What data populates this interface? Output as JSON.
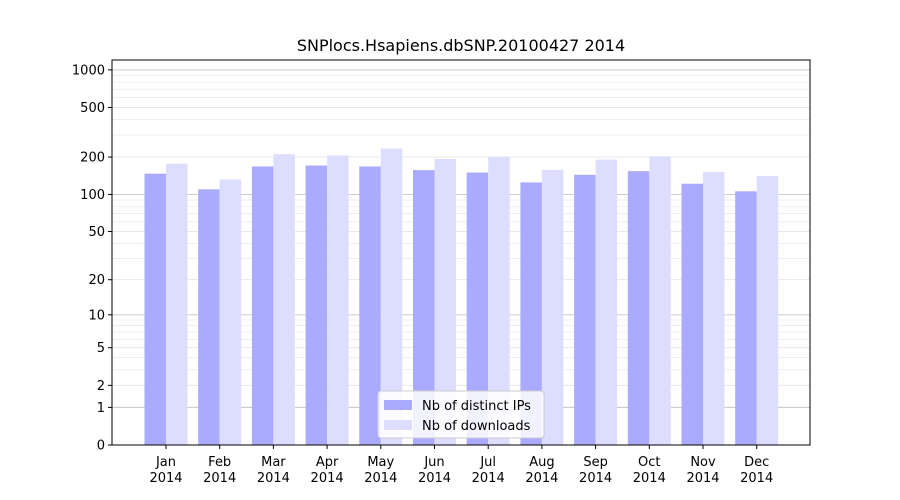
{
  "chart_data": {
    "type": "bar",
    "title": "SNPlocs.Hsapiens.dbSNP.20100427 2014",
    "xlabel": "",
    "ylabel": "",
    "y_scale": "log(1+y)",
    "ylim": [
      0,
      1200
    ],
    "y_ticks": [
      0,
      1,
      2,
      5,
      10,
      20,
      50,
      100,
      200,
      500,
      1000
    ],
    "y_tick_labels": [
      "0",
      "1",
      "2",
      "5",
      "10",
      "20",
      "50",
      "100",
      "200",
      "500",
      "1000"
    ],
    "grid": true,
    "legend_position": "bottom-center",
    "categories": [
      [
        "Jan",
        "2014"
      ],
      [
        "Feb",
        "2014"
      ],
      [
        "Mar",
        "2014"
      ],
      [
        "Apr",
        "2014"
      ],
      [
        "May",
        "2014"
      ],
      [
        "Jun",
        "2014"
      ],
      [
        "Jul",
        "2014"
      ],
      [
        "Aug",
        "2014"
      ],
      [
        "Sep",
        "2014"
      ],
      [
        "Oct",
        "2014"
      ],
      [
        "Nov",
        "2014"
      ],
      [
        "Dec",
        "2014"
      ]
    ],
    "series": [
      {
        "name": "Nb of distinct IPs",
        "color": "#aaaaff",
        "values": [
          147,
          110,
          168,
          171,
          168,
          157,
          150,
          125,
          144,
          154,
          122,
          106
        ]
      },
      {
        "name": "Nb of downloads",
        "color": "#ddddff",
        "values": [
          177,
          132,
          211,
          206,
          234,
          193,
          202,
          158,
          191,
          203,
          152,
          141
        ]
      }
    ]
  }
}
